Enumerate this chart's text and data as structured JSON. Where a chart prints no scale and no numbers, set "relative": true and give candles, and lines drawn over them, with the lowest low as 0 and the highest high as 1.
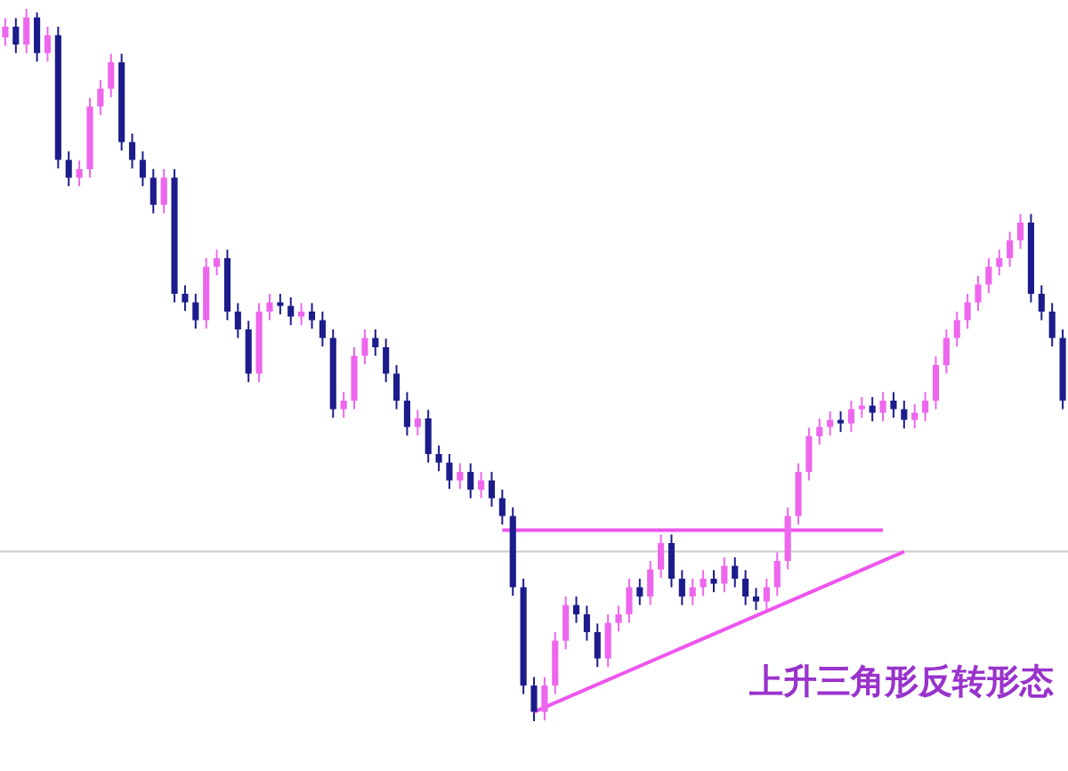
{
  "chart_data": {
    "type": "candlestick",
    "relative": true,
    "legend": false,
    "categories": [
      null,
      null,
      null,
      null,
      null,
      null,
      null,
      null,
      null,
      null,
      null,
      null,
      null,
      null,
      null,
      null,
      null,
      null,
      null,
      null,
      null,
      null,
      null,
      null,
      null,
      null,
      null,
      null,
      null,
      null,
      null,
      null,
      null,
      null,
      null,
      null,
      null,
      null,
      null,
      null,
      null,
      null,
      null,
      null,
      null,
      null,
      null,
      null,
      null,
      null,
      null,
      null,
      null,
      null,
      null,
      null,
      null,
      null,
      null,
      null,
      null,
      null,
      null,
      null,
      null,
      null,
      null,
      null,
      null,
      null,
      null,
      null,
      null,
      null,
      null,
      null,
      null,
      null,
      null,
      null,
      null,
      null,
      null,
      null,
      null,
      null,
      null,
      null,
      null,
      null,
      null,
      null,
      null,
      null,
      null,
      null,
      null,
      null,
      null,
      null,
      null
    ],
    "annotations": [
      "上升三角形反转形态"
    ],
    "ref_lines": [
      {
        "axis": "y",
        "value": 0.238,
        "color": "#cccccc"
      }
    ],
    "series": [
      {
        "type": "candlestick",
        "ohlc": [
          [
            0.96,
            0.987,
            0.948,
            0.975
          ],
          [
            0.975,
            0.987,
            0.938,
            0.95
          ],
          [
            0.95,
            1,
            0.938,
            0.988
          ],
          [
            0.988,
            0.995,
            0.926,
            0.938
          ],
          [
            0.938,
            0.975,
            0.926,
            0.963
          ],
          [
            0.963,
            0.975,
            0.776,
            0.788
          ],
          [
            0.788,
            0.8,
            0.751,
            0.763
          ],
          [
            0.763,
            0.787,
            0.751,
            0.775
          ],
          [
            0.775,
            0.875,
            0.763,
            0.863
          ],
          [
            0.863,
            0.9,
            0.851,
            0.888
          ],
          [
            0.888,
            0.937,
            0.876,
            0.925
          ],
          [
            0.925,
            0.937,
            0.801,
            0.813
          ],
          [
            0.813,
            0.825,
            0.776,
            0.788
          ],
          [
            0.788,
            0.8,
            0.751,
            0.763
          ],
          [
            0.763,
            0.775,
            0.713,
            0.725
          ],
          [
            0.725,
            0.775,
            0.713,
            0.763
          ],
          [
            0.763,
            0.775,
            0.588,
            0.6
          ],
          [
            0.6,
            0.612,
            0.576,
            0.588
          ],
          [
            0.588,
            0.6,
            0.551,
            0.563
          ],
          [
            0.563,
            0.65,
            0.551,
            0.638
          ],
          [
            0.638,
            0.662,
            0.626,
            0.65
          ],
          [
            0.65,
            0.662,
            0.563,
            0.575
          ],
          [
            0.575,
            0.587,
            0.538,
            0.55
          ],
          [
            0.55,
            0.562,
            0.476,
            0.488
          ],
          [
            0.488,
            0.587,
            0.476,
            0.575
          ],
          [
            0.575,
            0.6,
            0.563,
            0.588
          ],
          [
            0.588,
            0.6,
            0.571,
            0.583
          ],
          [
            0.583,
            0.595,
            0.556,
            0.568
          ],
          [
            0.568,
            0.587,
            0.556,
            0.575
          ],
          [
            0.575,
            0.587,
            0.551,
            0.563
          ],
          [
            0.563,
            0.575,
            0.526,
            0.538
          ],
          [
            0.538,
            0.55,
            0.426,
            0.438
          ],
          [
            0.438,
            0.462,
            0.426,
            0.45
          ],
          [
            0.45,
            0.525,
            0.438,
            0.513
          ],
          [
            0.513,
            0.55,
            0.501,
            0.538
          ],
          [
            0.538,
            0.55,
            0.513,
            0.525
          ],
          [
            0.525,
            0.537,
            0.476,
            0.488
          ],
          [
            0.488,
            0.5,
            0.438,
            0.45
          ],
          [
            0.45,
            0.462,
            0.401,
            0.413
          ],
          [
            0.413,
            0.437,
            0.401,
            0.425
          ],
          [
            0.425,
            0.437,
            0.363,
            0.375
          ],
          [
            0.375,
            0.387,
            0.351,
            0.363
          ],
          [
            0.363,
            0.375,
            0.326,
            0.338
          ],
          [
            0.338,
            0.362,
            0.326,
            0.35
          ],
          [
            0.35,
            0.362,
            0.313,
            0.325
          ],
          [
            0.325,
            0.35,
            0.313,
            0.338
          ],
          [
            0.338,
            0.35,
            0.301,
            0.313
          ],
          [
            0.313,
            0.325,
            0.276,
            0.288
          ],
          [
            0.288,
            0.3,
            0.176,
            0.188
          ],
          [
            0.188,
            0.2,
            0.038,
            0.05
          ],
          [
            0.05,
            0.062,
            0,
            0.013
          ],
          [
            0.013,
            0.062,
            0.001,
            0.05
          ],
          [
            0.05,
            0.125,
            0.038,
            0.113
          ],
          [
            0.113,
            0.175,
            0.101,
            0.163
          ],
          [
            0.163,
            0.175,
            0.138,
            0.15
          ],
          [
            0.15,
            0.162,
            0.113,
            0.125
          ],
          [
            0.125,
            0.137,
            0.076,
            0.088
          ],
          [
            0.088,
            0.15,
            0.076,
            0.138
          ],
          [
            0.138,
            0.162,
            0.126,
            0.15
          ],
          [
            0.15,
            0.2,
            0.138,
            0.188
          ],
          [
            0.188,
            0.2,
            0.163,
            0.175
          ],
          [
            0.175,
            0.225,
            0.163,
            0.213
          ],
          [
            0.213,
            0.262,
            0.201,
            0.25
          ],
          [
            0.25,
            0.262,
            0.188,
            0.2
          ],
          [
            0.2,
            0.212,
            0.163,
            0.175
          ],
          [
            0.175,
            0.2,
            0.163,
            0.188
          ],
          [
            0.188,
            0.212,
            0.176,
            0.2
          ],
          [
            0.2,
            0.212,
            0.181,
            0.193
          ],
          [
            0.193,
            0.23,
            0.181,
            0.218
          ],
          [
            0.218,
            0.23,
            0.188,
            0.2
          ],
          [
            0.2,
            0.212,
            0.163,
            0.175
          ],
          [
            0.175,
            0.187,
            0.156,
            0.168
          ],
          [
            0.168,
            0.2,
            0.156,
            0.188
          ],
          [
            0.188,
            0.237,
            0.176,
            0.225
          ],
          [
            0.225,
            0.3,
            0.213,
            0.288
          ],
          [
            0.288,
            0.362,
            0.276,
            0.35
          ],
          [
            0.35,
            0.412,
            0.338,
            0.4
          ],
          [
            0.4,
            0.425,
            0.388,
            0.413
          ],
          [
            0.413,
            0.435,
            0.401,
            0.423
          ],
          [
            0.423,
            0.435,
            0.406,
            0.418
          ],
          [
            0.418,
            0.45,
            0.406,
            0.438
          ],
          [
            0.438,
            0.455,
            0.426,
            0.443
          ],
          [
            0.443,
            0.455,
            0.421,
            0.433
          ],
          [
            0.433,
            0.462,
            0.421,
            0.45
          ],
          [
            0.45,
            0.462,
            0.426,
            0.438
          ],
          [
            0.438,
            0.45,
            0.411,
            0.423
          ],
          [
            0.423,
            0.445,
            0.411,
            0.433
          ],
          [
            0.433,
            0.462,
            0.421,
            0.45
          ],
          [
            0.45,
            0.512,
            0.438,
            0.5
          ],
          [
            0.5,
            0.55,
            0.488,
            0.538
          ],
          [
            0.538,
            0.575,
            0.526,
            0.563
          ],
          [
            0.563,
            0.6,
            0.551,
            0.588
          ],
          [
            0.588,
            0.625,
            0.576,
            0.613
          ],
          [
            0.613,
            0.65,
            0.601,
            0.638
          ],
          [
            0.638,
            0.662,
            0.626,
            0.65
          ],
          [
            0.65,
            0.687,
            0.638,
            0.675
          ],
          [
            0.675,
            0.712,
            0.663,
            0.7
          ],
          [
            0.7,
            0.712,
            0.588,
            0.6
          ],
          [
            0.6,
            0.612,
            0.563,
            0.575
          ],
          [
            0.575,
            0.587,
            0.526,
            0.538
          ],
          [
            0.538,
            0.55,
            0.438,
            0.45
          ]
        ],
        "colors": [
          "#ee66ee",
          "#1c1c8c",
          "#ee66ee",
          "#1c1c8c",
          "#ee66ee",
          "#1c1c8c",
          "#1c1c8c",
          "#ee66ee",
          "#ee66ee",
          "#ee66ee",
          "#ee66ee",
          "#1c1c8c",
          "#1c1c8c",
          "#1c1c8c",
          "#1c1c8c",
          "#ee66ee",
          "#1c1c8c",
          "#1c1c8c",
          "#1c1c8c",
          "#ee66ee",
          "#ee66ee",
          "#1c1c8c",
          "#1c1c8c",
          "#1c1c8c",
          "#ee66ee",
          "#ee66ee",
          "#1c1c8c",
          "#1c1c8c",
          "#ee66ee",
          "#1c1c8c",
          "#1c1c8c",
          "#1c1c8c",
          "#ee66ee",
          "#ee66ee",
          "#ee66ee",
          "#1c1c8c",
          "#1c1c8c",
          "#1c1c8c",
          "#1c1c8c",
          "#ee66ee",
          "#1c1c8c",
          "#1c1c8c",
          "#1c1c8c",
          "#ee66ee",
          "#1c1c8c",
          "#ee66ee",
          "#1c1c8c",
          "#1c1c8c",
          "#1c1c8c",
          "#1c1c8c",
          "#1c1c8c",
          "#ee66ee",
          "#ee66ee",
          "#ee66ee",
          "#1c1c8c",
          "#1c1c8c",
          "#1c1c8c",
          "#ee66ee",
          "#ee66ee",
          "#ee66ee",
          "#1c1c8c",
          "#ee66ee",
          "#ee66ee",
          "#1c1c8c",
          "#1c1c8c",
          "#ee66ee",
          "#ee66ee",
          "#1c1c8c",
          "#ee66ee",
          "#1c1c8c",
          "#1c1c8c",
          "#1c1c8c",
          "#ee66ee",
          "#ee66ee",
          "#ee66ee",
          "#ee66ee",
          "#ee66ee",
          "#ee66ee",
          "#ee66ee",
          "#1c1c8c",
          "#ee66ee",
          "#ee66ee",
          "#1c1c8c",
          "#ee66ee",
          "#1c1c8c",
          "#1c1c8c",
          "#ee66ee",
          "#ee66ee",
          "#ee66ee",
          "#ee66ee",
          "#ee66ee",
          "#ee66ee",
          "#ee66ee",
          "#ee66ee",
          "#ee66ee",
          "#ee66ee",
          "#ee66ee",
          "#1c1c8c",
          "#1c1c8c",
          "#1c1c8c",
          "#1c1c8c"
        ]
      },
      {
        "type": "line",
        "color": "#ee55ee",
        "values": [
          null,
          null,
          null,
          null,
          null,
          null,
          null,
          null,
          null,
          null,
          null,
          null,
          null,
          null,
          null,
          null,
          null,
          null,
          null,
          null,
          null,
          null,
          null,
          null,
          null,
          null,
          null,
          null,
          null,
          null,
          null,
          null,
          null,
          null,
          null,
          null,
          null,
          null,
          null,
          null,
          null,
          null,
          null,
          null,
          null,
          null,
          null,
          0.268,
          null,
          null,
          null,
          null,
          null,
          null,
          null,
          null,
          null,
          null,
          null,
          null,
          null,
          null,
          null,
          null,
          null,
          null,
          null,
          null,
          null,
          null,
          null,
          null,
          null,
          null,
          null,
          null,
          null,
          null,
          null,
          null,
          null,
          null,
          null,
          0.268,
          null,
          null,
          null,
          null,
          null,
          null,
          null,
          null,
          null,
          null,
          null,
          null,
          null,
          null,
          null,
          null,
          null
        ]
      },
      {
        "type": "line",
        "color": "#ee55ee",
        "values": [
          null,
          null,
          null,
          null,
          null,
          null,
          null,
          null,
          null,
          null,
          null,
          null,
          null,
          null,
          null,
          null,
          null,
          null,
          null,
          null,
          null,
          null,
          null,
          null,
          null,
          null,
          null,
          null,
          null,
          null,
          null,
          null,
          null,
          null,
          null,
          null,
          null,
          null,
          null,
          null,
          null,
          null,
          null,
          null,
          null,
          null,
          null,
          null,
          null,
          null,
          0.013,
          null,
          null,
          null,
          null,
          null,
          null,
          null,
          null,
          null,
          null,
          null,
          null,
          null,
          null,
          null,
          null,
          null,
          null,
          null,
          null,
          null,
          null,
          null,
          null,
          null,
          null,
          null,
          null,
          null,
          null,
          null,
          null,
          null,
          null,
          0.238,
          null,
          null,
          null,
          null,
          null,
          null,
          null,
          null,
          null,
          null,
          null,
          null,
          null,
          null,
          null
        ]
      }
    ]
  }
}
